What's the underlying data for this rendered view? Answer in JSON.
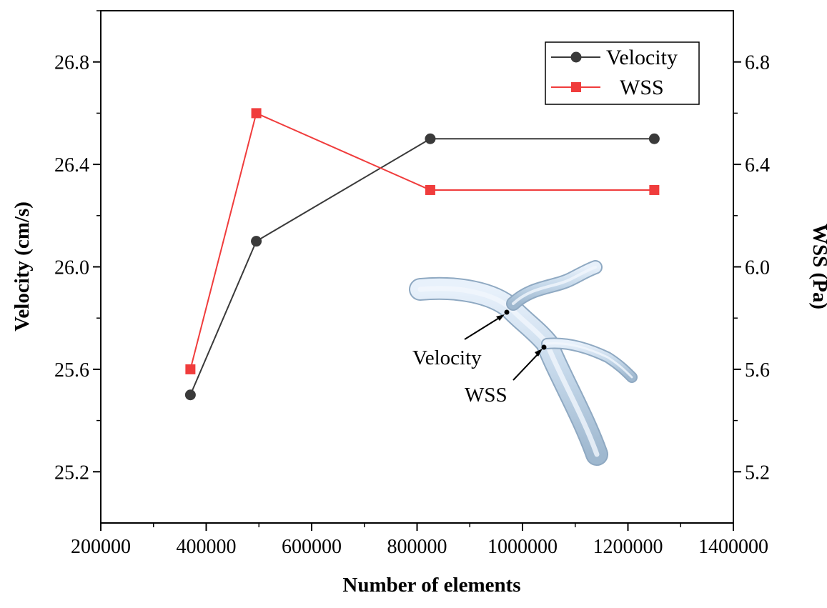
{
  "chart_data": {
    "type": "line",
    "xlabel": "Number of elements",
    "ylabel_left": "Velocity (cm/s)",
    "ylabel_right": "WSS (Pa)",
    "xlim": [
      200000,
      1400000
    ],
    "ylim_left": [
      25.0,
      27.0
    ],
    "ylim_right": [
      5.0,
      7.0
    ],
    "x_ticks": [
      "200000",
      "400000",
      "600000",
      "800000",
      "1000000",
      "1200000",
      "1400000"
    ],
    "y_ticks_left": [
      "25.2",
      "25.6",
      "26.0",
      "26.4",
      "26.8"
    ],
    "y_ticks_right": [
      "5.2",
      "5.6",
      "6.0",
      "6.4",
      "6.8"
    ],
    "grid": false,
    "legend_position": "top-right",
    "series": [
      {
        "name": "Velocity",
        "axis": "left",
        "color": "#3a3a3a",
        "marker": "circle",
        "x": [
          370000,
          495000,
          825000,
          1250000
        ],
        "values": [
          25.5,
          26.1,
          26.5,
          26.5
        ]
      },
      {
        "name": "WSS",
        "axis": "right",
        "color": "#f03c3c",
        "marker": "square",
        "x": [
          370000,
          495000,
          825000,
          1250000
        ],
        "values": [
          5.6,
          6.6,
          6.3,
          6.3
        ]
      }
    ],
    "inset": {
      "description_icon": "vessel-bifurcation-model",
      "labels": [
        "Velocity",
        "WSS"
      ]
    }
  }
}
